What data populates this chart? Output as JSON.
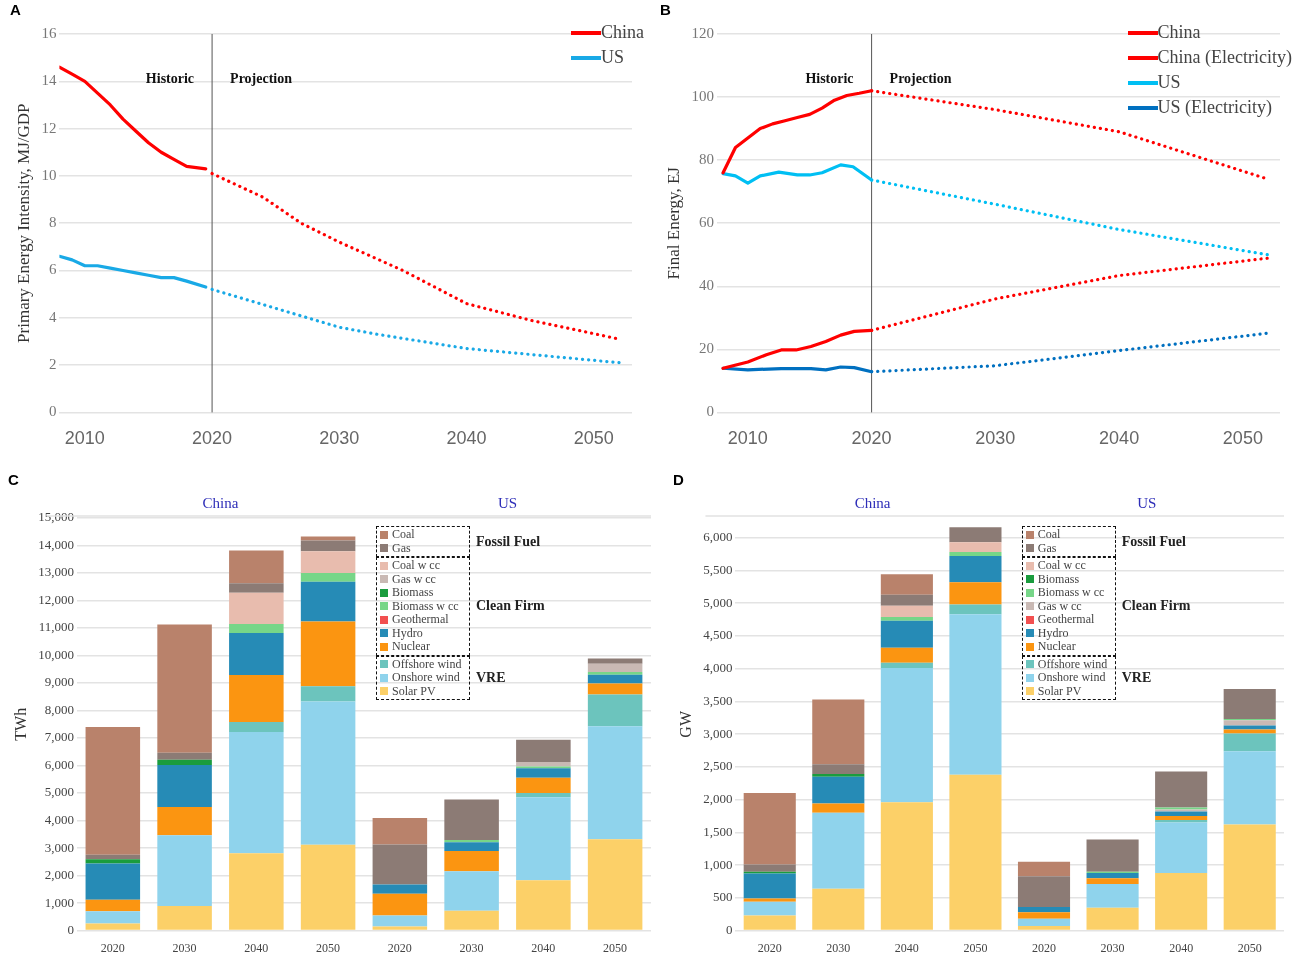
{
  "chart_data": [
    {
      "type": "line",
      "title": "A",
      "ylabel": "Primary Energy Intensity, MJ/GDP",
      "xlim": [
        2008,
        2053
      ],
      "xticks": [
        2010,
        2020,
        2030,
        2040,
        2050
      ],
      "ylim": [
        0,
        16
      ],
      "yticks": [
        0,
        2,
        4,
        6,
        8,
        10,
        12,
        14,
        16
      ],
      "grid": "y",
      "legend": "top right",
      "marker": "none",
      "ref_lines": [
        {
          "axis": "x",
          "value": 2020,
          "color": "#555555"
        }
      ],
      "annotations": [
        "Historic",
        "Projection"
      ],
      "series": [
        {
          "name": "China",
          "color": "#ff0000",
          "line_style": "solid",
          "x": [
            2008,
            2009,
            2010,
            2011,
            2012,
            2013,
            2014,
            2015,
            2016,
            2017,
            2018,
            2019.5
          ],
          "values": [
            14.6,
            14.3,
            14.0,
            13.5,
            13.0,
            12.4,
            11.9,
            11.4,
            11.0,
            10.7,
            10.4,
            10.3
          ]
        },
        {
          "name": "US",
          "color": "#19a9e6",
          "line_style": "solid",
          "x": [
            2008,
            2009,
            2010,
            2011,
            2012,
            2013,
            2014,
            2015,
            2016,
            2017,
            2018,
            2019.5
          ],
          "values": [
            6.6,
            6.45,
            6.2,
            6.2,
            6.1,
            6.0,
            5.9,
            5.8,
            5.7,
            5.7,
            5.55,
            5.3
          ]
        },
        {
          "color": "#ff0000",
          "line_style": "dotted",
          "x": [
            2020,
            2024,
            2027,
            2030,
            2035,
            2040,
            2045,
            2052
          ],
          "values": [
            10.1,
            9.1,
            8.0,
            7.2,
            6.0,
            4.6,
            3.9,
            3.1
          ]
        },
        {
          "color": "#19a9e6",
          "line_style": "dotted",
          "x": [
            2020,
            2025,
            2030,
            2033,
            2040,
            2046,
            2052
          ],
          "values": [
            5.2,
            4.4,
            3.6,
            3.3,
            2.7,
            2.4,
            2.1
          ]
        }
      ]
    },
    {
      "type": "line",
      "title": "B",
      "ylabel": "Final Energy, EJ",
      "xlim": [
        2007.5,
        2053
      ],
      "xticks": [
        2010,
        2020,
        2030,
        2040,
        2050
      ],
      "ylim": [
        0,
        120
      ],
      "yticks": [
        0,
        20,
        40,
        60,
        80,
        100,
        120
      ],
      "grid": "y",
      "legend": "top right",
      "marker": "none",
      "ref_lines": [
        {
          "axis": "x",
          "value": 2020,
          "color": "#555555"
        }
      ],
      "annotations": [
        "Historic",
        "Projection"
      ],
      "series": [
        {
          "name": "China",
          "color": "#ff0000",
          "line_style": "solid",
          "x": [
            2008,
            2009,
            2010,
            2011,
            2012,
            2013,
            2014,
            2015,
            2016,
            2017,
            2018,
            2019,
            2020
          ],
          "values": [
            76,
            84,
            87,
            90,
            91.5,
            92.5,
            93.5,
            94.5,
            96.5,
            99,
            100.5,
            101.2,
            102
          ]
        },
        {
          "name": "China (Electricity)",
          "color": "#ff0000",
          "line_style": "solid",
          "x": [
            2008,
            2010,
            2011.5,
            2012.7,
            2013.9,
            2015.1,
            2016.3,
            2017.5,
            2018.6,
            2020
          ],
          "values": [
            14,
            16,
            18.3,
            19.8,
            19.8,
            20.9,
            22.5,
            24.5,
            25.7,
            26
          ]
        },
        {
          "name": "US",
          "color": "#00bff3",
          "line_style": "solid",
          "x": [
            2008,
            2009,
            2010,
            2011,
            2012.5,
            2014,
            2015,
            2016,
            2017.5,
            2018.5,
            2020
          ],
          "values": [
            75.7,
            75,
            72.7,
            75,
            76.2,
            75.3,
            75.3,
            76,
            78.5,
            77.9,
            73.7
          ]
        },
        {
          "name": "US (Electricity)",
          "color": "#0070c0",
          "line_style": "solid",
          "x": [
            2008,
            2010,
            2012.7,
            2015.1,
            2016.3,
            2017.5,
            2018.6,
            2020
          ],
          "values": [
            14,
            13.5,
            13.9,
            13.9,
            13.5,
            14.4,
            14.2,
            12.9
          ]
        },
        {
          "color": "#ff0000",
          "line_style": "dotted",
          "x": [
            2020,
            2030,
            2040,
            2052
          ],
          "values": [
            102,
            96,
            89,
            74
          ]
        },
        {
          "color": "#ff0000",
          "line_style": "dotted",
          "x": [
            2020,
            2030,
            2040,
            2052
          ],
          "values": [
            26,
            36,
            43.4,
            48.9
          ]
        },
        {
          "color": "#00bff3",
          "line_style": "dotted",
          "x": [
            2020,
            2030,
            2040,
            2052
          ],
          "values": [
            73.7,
            66,
            58,
            50
          ]
        },
        {
          "color": "#0070c0",
          "line_style": "dotted",
          "x": [
            2020,
            2030,
            2040,
            2052
          ],
          "values": [
            12.9,
            14.8,
            19.6,
            25.1
          ]
        }
      ]
    },
    {
      "type": "bar",
      "title": "C",
      "ylabel": "TWh",
      "stacked": true,
      "grid": "y",
      "legend": "top",
      "categories": [
        "2020",
        "2030",
        "2040",
        "2050",
        "2020",
        "2030",
        "2040",
        "2050"
      ],
      "ylim": [
        0,
        15000
      ],
      "yticks": [
        {
          "value": 0,
          "label": "0"
        },
        {
          "value": 1000,
          "label": "1,000"
        },
        {
          "value": 2000,
          "label": "2,000"
        },
        {
          "value": 3000,
          "label": "3,000"
        },
        {
          "value": 4000,
          "label": "4,000"
        },
        {
          "value": 5000,
          "label": "5,000"
        },
        {
          "value": 6000,
          "label": "6,000"
        },
        {
          "value": 7000,
          "label": "7,000"
        },
        {
          "value": 8000,
          "label": "8,000"
        },
        {
          "value": 9000,
          "label": "9,000"
        },
        {
          "value": 10000,
          "label": "10,000"
        },
        {
          "value": 11000,
          "label": "11,000"
        },
        {
          "value": 12000,
          "label": "12,000"
        },
        {
          "value": 13000,
          "label": "13,000"
        },
        {
          "value": 14000,
          "label": "14,000"
        },
        {
          "value": 15000,
          "label": "15,000"
        }
      ],
      "annotations": [
        "China",
        "US",
        "Fossil Fuel",
        "Clean Firm",
        "VRE"
      ],
      "series": [
        {
          "name": "Solar PV",
          "color": "#fcd068",
          "values": [
            260,
            890,
            2810,
            3120,
            150,
            720,
            1830,
            3320
          ]
        },
        {
          "name": "Onshore wind",
          "color": "#8fd3ec",
          "values": [
            440,
            2580,
            4410,
            5210,
            400,
            1440,
            3020,
            4110
          ]
        },
        {
          "name": "Offshore wind",
          "color": "#6cc4bd",
          "values": [
            0,
            0,
            360,
            550,
            0,
            0,
            150,
            1150
          ]
        },
        {
          "name": "Nuclear",
          "color": "#fb9511",
          "values": [
            420,
            1020,
            1710,
            2360,
            790,
            730,
            560,
            400
          ]
        },
        {
          "name": "Hydro",
          "color": "#268bb6",
          "values": [
            1320,
            1530,
            1530,
            1440,
            340,
            320,
            340,
            320
          ]
        },
        {
          "name": "Geothermal",
          "color": "#f25050",
          "values": [
            0,
            0,
            0,
            0,
            0,
            0,
            0,
            0
          ]
        },
        {
          "name": "Biomass w cc",
          "color": "#77d688",
          "values": [
            0,
            0,
            330,
            320,
            0,
            80,
            70,
            100
          ]
        },
        {
          "name": "Biomass",
          "color": "#1a9c3e",
          "values": [
            150,
            190,
            0,
            0,
            0,
            0,
            0,
            0
          ]
        },
        {
          "name": "Gas w cc",
          "color": "#c9b9b4",
          "values": [
            0,
            0,
            0,
            0,
            null,
            0,
            160,
            300
          ]
        },
        {
          "name": "Coal w cc",
          "color": "#e8bcae",
          "values": [
            0,
            0,
            1130,
            790,
            0,
            0,
            0,
            0
          ]
        },
        {
          "name": "Gas",
          "color": "#8c7b75",
          "values": [
            170,
            260,
            350,
            390,
            1450,
            1480,
            810,
            190
          ]
        },
        {
          "name": "Coal",
          "color": "#b9826b",
          "values": [
            4640,
            4660,
            1190,
            150,
            960,
            0,
            0,
            0
          ]
        }
      ]
    },
    {
      "type": "bar",
      "title": "D",
      "ylabel": "GW",
      "stacked": true,
      "grid": "y",
      "legend": "top",
      "categories": [
        "2020",
        "2030",
        "2040",
        "2050",
        "2020",
        "2030",
        "2040",
        "2050"
      ],
      "ylim": [
        0,
        6300
      ],
      "yticks": [
        {
          "value": 0,
          "label": "0"
        },
        {
          "value": 500,
          "label": "500"
        },
        {
          "value": 1000,
          "label": "1,000"
        },
        {
          "value": 1500,
          "label": "1,500"
        },
        {
          "value": 2000,
          "label": "2,000"
        },
        {
          "value": 2500,
          "label": "2,500"
        },
        {
          "value": 3000,
          "label": "3,000"
        },
        {
          "value": 3500,
          "label": "3,500"
        },
        {
          "value": 4000,
          "label": "4,000"
        },
        {
          "value": 4500,
          "label": "4,500"
        },
        {
          "value": 5000,
          "label": "5,000"
        },
        {
          "value": 5500,
          "label": "5,500"
        },
        {
          "value": 6000,
          "label": "6,000"
        }
      ],
      "annotations": [
        "China",
        "US",
        "Fossil Fuel",
        "Clean Firm",
        "VRE"
      ],
      "series": [
        {
          "name": "Solar PV",
          "color": "#fcd068",
          "values": [
            230,
            640,
            1960,
            2380,
            70,
            350,
            880,
            1620
          ]
        },
        {
          "name": "Onshore wind",
          "color": "#8fd3ec",
          "values": [
            210,
            1160,
            2050,
            2450,
            110,
            360,
            770,
            1120
          ]
        },
        {
          "name": "Offshore wind",
          "color": "#6cc4bd",
          "values": [
            0,
            0,
            80,
            150,
            0,
            0,
            40,
            270
          ]
        },
        {
          "name": "Nuclear",
          "color": "#fb9511",
          "values": [
            50,
            140,
            230,
            340,
            100,
            90,
            60,
            60
          ]
        },
        {
          "name": "Hydro",
          "color": "#268bb6",
          "values": [
            380,
            410,
            410,
            400,
            80,
            80,
            70,
            60
          ]
        },
        {
          "name": "Geothermal",
          "color": "#f25050",
          "values": [
            0,
            0,
            0,
            0,
            0,
            0,
            0,
            0
          ]
        },
        {
          "name": "Gas w cc",
          "color": "#c9b9b4",
          "values": [
            0,
            0,
            0,
            0,
            null,
            0,
            30,
            80
          ]
        },
        {
          "name": "Biomass w cc",
          "color": "#77d688",
          "values": [
            0,
            0,
            60,
            60,
            0,
            20,
            30,
            20
          ]
        },
        {
          "name": "Biomass",
          "color": "#1a9c3e",
          "values": [
            30,
            40,
            0,
            0,
            0,
            0,
            0,
            0
          ]
        },
        {
          "name": "Coal w cc",
          "color": "#e8bcae",
          "values": [
            0,
            0,
            170,
            150,
            0,
            0,
            0,
            0
          ]
        },
        {
          "name": "Gas",
          "color": "#8c7b75",
          "values": [
            110,
            150,
            170,
            230,
            470,
            490,
            550,
            460
          ]
        },
        {
          "name": "Coal",
          "color": "#b9826b",
          "values": [
            1090,
            990,
            310,
            0,
            220,
            0,
            0,
            0
          ]
        }
      ]
    }
  ]
}
